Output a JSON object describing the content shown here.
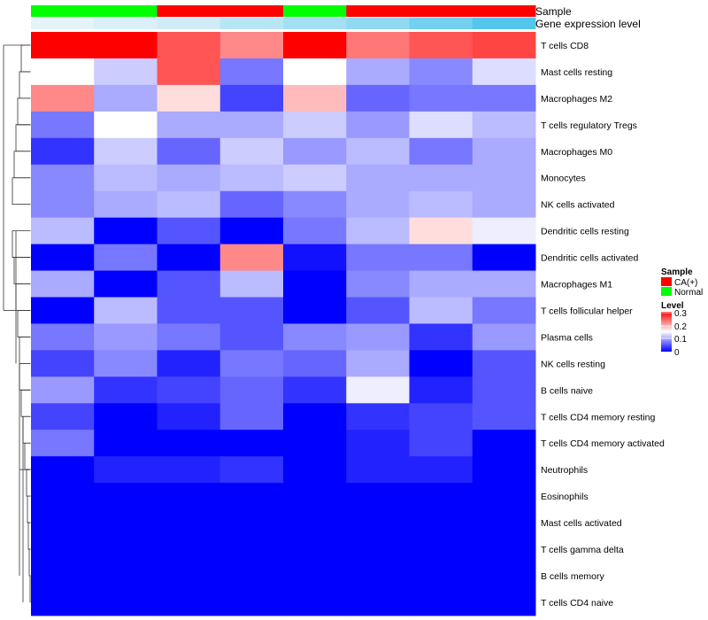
{
  "chart_data": {
    "type": "heatmap",
    "title": "",
    "annotation_tracks": [
      {
        "name": "Sample",
        "values": [
          "Normal",
          "Normal",
          "CA(+)",
          "CA(+)",
          "Normal",
          "CA(+)",
          "CA(+)",
          "CA(+)"
        ]
      },
      {
        "name": "Gene expression level",
        "values": [
          0.0,
          0.08,
          0.15,
          0.3,
          0.42,
          0.55,
          0.75,
          0.95
        ]
      }
    ],
    "rows": [
      "T cells CD8",
      "Mast cells resting",
      "Macrophages M2",
      "T cells regulatory  Tregs",
      "Macrophages M0",
      "Monocytes",
      "NK cells activated",
      "Dendritic cells resting",
      "Dendritic cells activated",
      "Macrophages M1",
      "T cells follicular helper",
      "Plasma cells",
      "NK cells resting",
      "B cells naive",
      "T cells CD4 memory resting",
      "T cells CD4 memory activated",
      "Neutrophils",
      "Eosinophils",
      "Mast cells activated",
      "T cells gamma delta",
      "B cells memory",
      "T cells CD4 naive"
    ],
    "values": [
      [
        0.3,
        0.3,
        0.25,
        0.22,
        0.3,
        0.23,
        0.25,
        0.26
      ],
      [
        0.15,
        0.12,
        0.25,
        0.07,
        0.15,
        0.1,
        0.08,
        0.13
      ],
      [
        0.22,
        0.1,
        0.17,
        0.04,
        0.19,
        0.06,
        0.07,
        0.07
      ],
      [
        0.07,
        0.15,
        0.1,
        0.1,
        0.12,
        0.09,
        0.13,
        0.11
      ],
      [
        0.03,
        0.12,
        0.06,
        0.12,
        0.09,
        0.11,
        0.07,
        0.1
      ],
      [
        0.08,
        0.11,
        0.1,
        0.11,
        0.12,
        0.1,
        0.1,
        0.1
      ],
      [
        0.08,
        0.1,
        0.11,
        0.06,
        0.08,
        0.1,
        0.11,
        0.1
      ],
      [
        0.11,
        0.0,
        0.05,
        0.0,
        0.07,
        0.11,
        0.17,
        0.14
      ],
      [
        0.0,
        0.07,
        0.0,
        0.22,
        0.01,
        0.07,
        0.07,
        0.0
      ],
      [
        0.1,
        0.0,
        0.05,
        0.11,
        0.0,
        0.08,
        0.1,
        0.1
      ],
      [
        0.0,
        0.11,
        0.05,
        0.05,
        0.0,
        0.05,
        0.11,
        0.07
      ],
      [
        0.07,
        0.09,
        0.07,
        0.05,
        0.08,
        0.09,
        0.03,
        0.09
      ],
      [
        0.04,
        0.08,
        0.02,
        0.07,
        0.06,
        0.1,
        0.0,
        0.05
      ],
      [
        0.09,
        0.03,
        0.04,
        0.06,
        0.03,
        0.14,
        0.02,
        0.05
      ],
      [
        0.04,
        0.0,
        0.02,
        0.06,
        0.0,
        0.03,
        0.04,
        0.05
      ],
      [
        0.07,
        0.0,
        0.0,
        0.0,
        0.0,
        0.02,
        0.04,
        0.0
      ],
      [
        0.0,
        0.02,
        0.02,
        0.03,
        0.0,
        0.02,
        0.02,
        0.0
      ],
      [
        0.0,
        0.0,
        0.0,
        0.0,
        0.0,
        0.0,
        0.0,
        0.0
      ],
      [
        0.0,
        0.0,
        0.0,
        0.0,
        0.0,
        0.0,
        0.0,
        0.0
      ],
      [
        0.0,
        0.0,
        0.0,
        0.0,
        0.0,
        0.0,
        0.0,
        0.0
      ],
      [
        0.0,
        0.0,
        0.0,
        0.0,
        0.0,
        0.0,
        0.0,
        0.0
      ],
      [
        0.0,
        0.0,
        0.0,
        0.0,
        0.0,
        0.0,
        0.0,
        0.0
      ]
    ],
    "color_scale": {
      "min": 0,
      "max": 0.3,
      "low": "#0000ff",
      "mid": "#ffffff",
      "high": "#ff0000"
    },
    "legend": {
      "sample_title": "Sample",
      "sample_entries": [
        {
          "label": "CA(+)",
          "color": "#ff0000"
        },
        {
          "label": "Normal",
          "color": "#00ff00"
        }
      ],
      "level_title": "Level",
      "level_ticks": [
        "0.3",
        "0.2",
        "0.1",
        "0"
      ]
    },
    "annotation_colors": {
      "Sample": {
        "Normal": "#00ff00",
        "CA(+)": "#ff0000"
      },
      "Gene expression level": {
        "low": "#e6f3f9",
        "high": "#4cc4ec"
      }
    },
    "row_dendrogram": true,
    "column_dendrogram": false
  }
}
